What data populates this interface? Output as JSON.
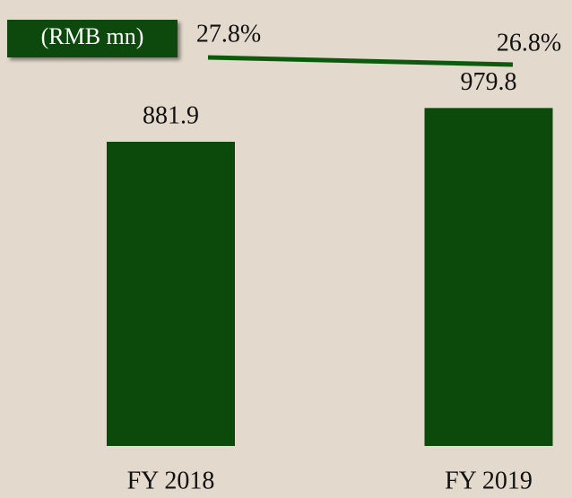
{
  "chart_data": {
    "type": "bar",
    "annotation": "(RMB mn)",
    "categories": [
      "FY 2018",
      "FY 2019"
    ],
    "series": [
      {
        "type": "bar",
        "color": "#0b4a0b",
        "values": [
          881.9,
          979.8
        ]
      },
      {
        "type": "line",
        "axis": "y2",
        "color": "#0d5a0d",
        "values": [
          27.8,
          26.8
        ],
        "value_labels": [
          "27.8%",
          "26.8%"
        ]
      }
    ],
    "ylim": [
      0,
      1250
    ],
    "y2lim": [
      20,
      30
    ]
  }
}
